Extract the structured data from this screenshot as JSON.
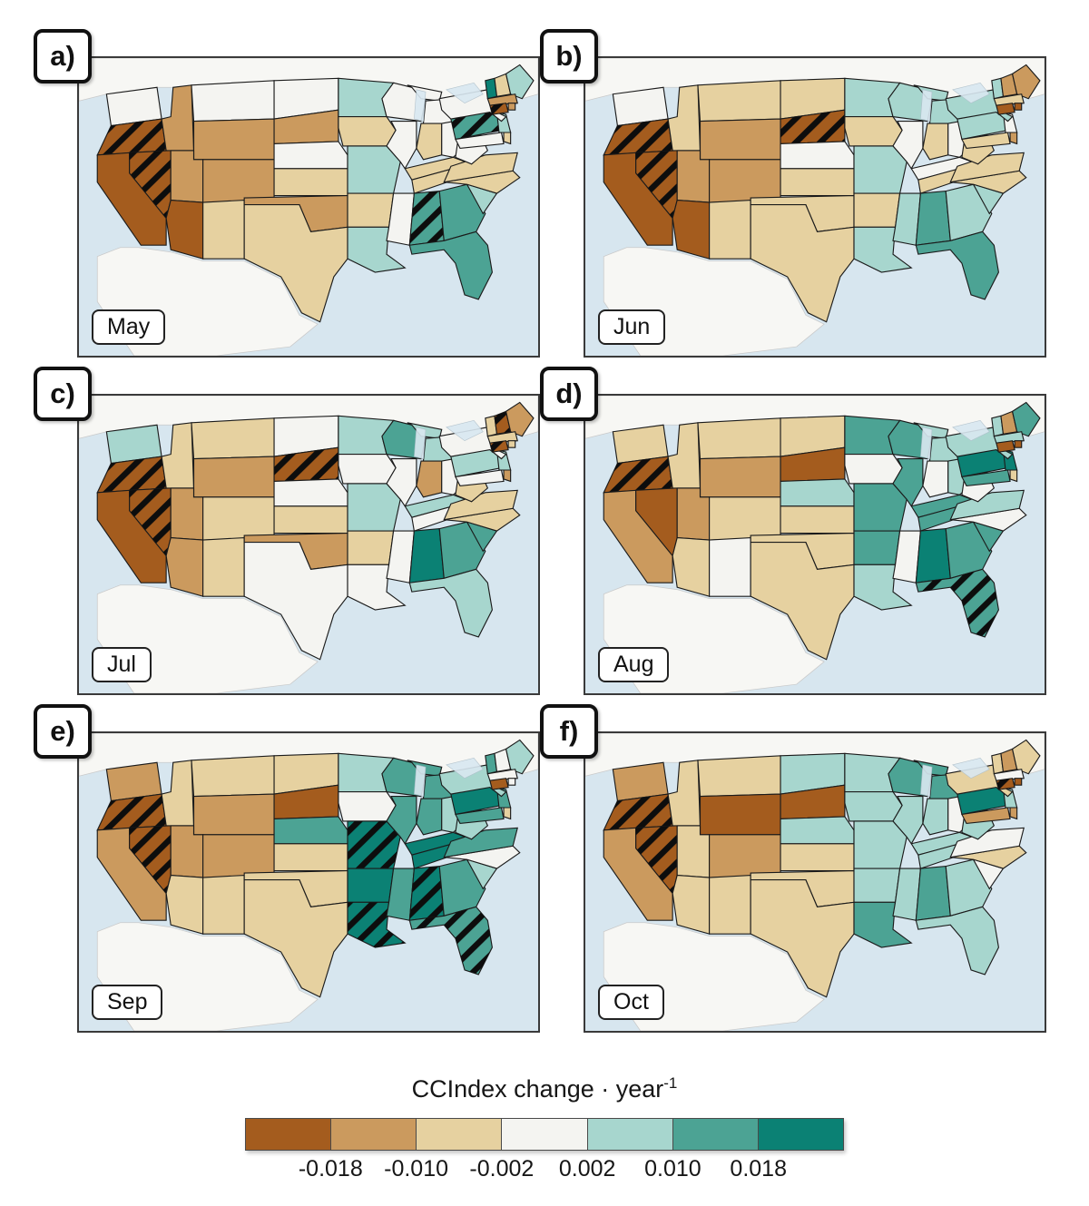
{
  "chart_data": {
    "type": "choropleth",
    "subtype": "small-multiples-us-states",
    "title_main": "CCIndex change · year",
    "title_sup": "-1",
    "legend": {
      "tick_labels": [
        "-0.018",
        "-0.010",
        "-0.002",
        "0.002",
        "0.010",
        "0.018"
      ],
      "bin_colors": [
        "#a45c1e",
        "#cb9a5e",
        "#e6d1a0",
        "#f4f4f1",
        "#a7d6ce",
        "#4ca394",
        "#0b8174"
      ],
      "bin_ranges": [
        "< -0.018",
        "-0.018 to -0.010",
        "-0.010 to -0.002",
        "-0.002 to 0.002",
        "0.002 to 0.010",
        "0.010 to 0.018",
        "> 0.018"
      ],
      "hatch_meaning": "hatched states (black diagonal stripes)"
    },
    "ocean_color": "#d7e6ef",
    "foreign_land_color": "#f7f7f4",
    "panels": [
      {
        "label": "a)",
        "month": "May",
        "values": {
          "WA": 0,
          "OR": -3,
          "CA": -3,
          "NV": -3,
          "ID": -2,
          "MT": 0,
          "WY": -2,
          "UT": -2,
          "CO": -2,
          "AZ": -3,
          "NM": -1,
          "ND": 0,
          "SD": -2,
          "NE": 0,
          "KS": -1,
          "OK": -2,
          "TX": -1,
          "MN": 1,
          "IA": -1,
          "MO": 1,
          "AR": -1,
          "LA": 1,
          "WI": 0,
          "IL": 0,
          "MS": 0,
          "MI": 0,
          "IN": -1,
          "OH": 0,
          "KY": -1,
          "TN": -1,
          "AL": 2,
          "GA": 2,
          "FL": 2,
          "SC": 1,
          "NC": -1,
          "VA": -1,
          "WV": 0,
          "PA": 2,
          "MD": 0,
          "DE": -1,
          "NJ": 1,
          "NY": 0,
          "VT": 3,
          "NH": -1,
          "ME": 1,
          "MA": -2,
          "RI": -2,
          "CT": -3
        },
        "hatched": [
          "OR",
          "NV",
          "AL",
          "PA",
          "CT"
        ]
      },
      {
        "label": "b)",
        "month": "Jun",
        "values": {
          "WA": 0,
          "OR": -3,
          "CA": -3,
          "NV": -3,
          "ID": -1,
          "MT": -1,
          "WY": -2,
          "UT": -2,
          "CO": -2,
          "AZ": -3,
          "NM": -1,
          "ND": -1,
          "SD": -3,
          "NE": 0,
          "KS": -1,
          "OK": -1,
          "TX": -1,
          "MN": 1,
          "IA": -1,
          "MO": 1,
          "AR": -1,
          "LA": 1,
          "WI": 1,
          "IL": 0,
          "MS": 1,
          "MI": 1,
          "IN": -1,
          "OH": 0,
          "KY": 0,
          "TN": -1,
          "AL": 2,
          "GA": 1,
          "FL": 2,
          "SC": 1,
          "NC": -1,
          "VA": -1,
          "WV": -1,
          "PA": 1,
          "MD": -1,
          "DE": -2,
          "NJ": 0,
          "NY": 1,
          "VT": 1,
          "NH": -2,
          "ME": -2,
          "MA": -1,
          "RI": -3,
          "CT": -3
        },
        "hatched": [
          "OR",
          "NV",
          "SD"
        ]
      },
      {
        "label": "c)",
        "month": "Jul",
        "values": {
          "WA": 1,
          "OR": -3,
          "CA": -3,
          "NV": -3,
          "ID": -1,
          "MT": -1,
          "WY": -2,
          "UT": -2,
          "CO": -1,
          "AZ": -2,
          "NM": -1,
          "ND": 0,
          "SD": -3,
          "NE": 0,
          "KS": -1,
          "OK": -2,
          "TX": 0,
          "MN": 1,
          "IA": 0,
          "MO": 1,
          "AR": -1,
          "LA": 0,
          "WI": 2,
          "IL": 0,
          "MS": 0,
          "MI": 1,
          "IN": -2,
          "OH": 0,
          "KY": 1,
          "TN": 0,
          "AL": 3,
          "GA": 2,
          "FL": 1,
          "SC": 2,
          "NC": -1,
          "VA": -1,
          "WV": -1,
          "PA": 1,
          "MD": 0,
          "DE": -2,
          "NJ": 1,
          "NY": 0,
          "VT": -1,
          "NH": -3,
          "ME": -2,
          "MA": -1,
          "RI": -1,
          "CT": -3
        },
        "hatched": [
          "OR",
          "NV",
          "SD",
          "NH",
          "CT"
        ]
      },
      {
        "label": "d)",
        "month": "Aug",
        "values": {
          "WA": -1,
          "OR": -3,
          "CA": -2,
          "NV": -3,
          "ID": -1,
          "MT": -1,
          "WY": -2,
          "UT": -2,
          "CO": -1,
          "AZ": -1,
          "NM": 0,
          "ND": -1,
          "SD": -3,
          "NE": 1,
          "KS": -1,
          "OK": -1,
          "TX": -1,
          "MN": 2,
          "IA": 0,
          "MO": 2,
          "AR": 2,
          "LA": 1,
          "WI": 2,
          "IL": 2,
          "MS": 0,
          "MI": 1,
          "IN": 0,
          "OH": 1,
          "KY": 2,
          "TN": 2,
          "AL": 3,
          "GA": 2,
          "FL": 2,
          "SC": 2,
          "NC": 0,
          "VA": 1,
          "WV": 0,
          "PA": 3,
          "MD": 2,
          "DE": -1,
          "NJ": 3,
          "NY": 1,
          "VT": 1,
          "NH": -2,
          "ME": 2,
          "MA": 1,
          "RI": -3,
          "CT": -3
        },
        "hatched": [
          "OR",
          "FL"
        ]
      },
      {
        "label": "e)",
        "month": "Sep",
        "values": {
          "WA": -2,
          "OR": -3,
          "CA": -2,
          "NV": -3,
          "ID": -1,
          "MT": -1,
          "WY": -2,
          "UT": -2,
          "CO": -2,
          "AZ": -1,
          "NM": -1,
          "ND": -1,
          "SD": -3,
          "NE": 2,
          "KS": -1,
          "OK": -1,
          "TX": -1,
          "MN": 1,
          "IA": 0,
          "MO": 3,
          "AR": 3,
          "LA": 3,
          "WI": 2,
          "IL": 2,
          "MS": 2,
          "MI": 2,
          "IN": 2,
          "OH": 1,
          "KY": 3,
          "TN": 3,
          "AL": 3,
          "GA": 2,
          "FL": 2,
          "SC": 1,
          "NC": 0,
          "VA": 2,
          "WV": 1,
          "PA": 3,
          "MD": 2,
          "DE": -1,
          "NJ": 2,
          "NY": 1,
          "VT": 2,
          "NH": 0,
          "ME": 1,
          "MA": 0,
          "RI": 0,
          "CT": -3
        },
        "hatched": [
          "OR",
          "NV",
          "MO",
          "LA",
          "AL",
          "FL"
        ]
      },
      {
        "label": "f)",
        "month": "Oct",
        "values": {
          "WA": -2,
          "OR": -3,
          "CA": -2,
          "NV": -3,
          "ID": -1,
          "MT": -1,
          "WY": -3,
          "UT": -1,
          "CO": -2,
          "AZ": -1,
          "NM": -1,
          "ND": 1,
          "SD": -3,
          "NE": 1,
          "KS": -1,
          "OK": -1,
          "TX": -1,
          "MN": 1,
          "IA": 1,
          "MO": 1,
          "AR": 1,
          "LA": 2,
          "WI": 2,
          "IL": 1,
          "MS": 1,
          "MI": 2,
          "IN": 1,
          "OH": 0,
          "KY": 1,
          "TN": 1,
          "AL": 2,
          "GA": 1,
          "FL": 1,
          "SC": 0,
          "NC": -1,
          "VA": 0,
          "WV": 1,
          "PA": 3,
          "MD": -2,
          "DE": -2,
          "NJ": 1,
          "NY": -1,
          "VT": -1,
          "NH": -2,
          "ME": -1,
          "MA": 0,
          "RI": -3,
          "CT": -3
        },
        "hatched": [
          "OR",
          "NV",
          "CT"
        ]
      }
    ]
  }
}
